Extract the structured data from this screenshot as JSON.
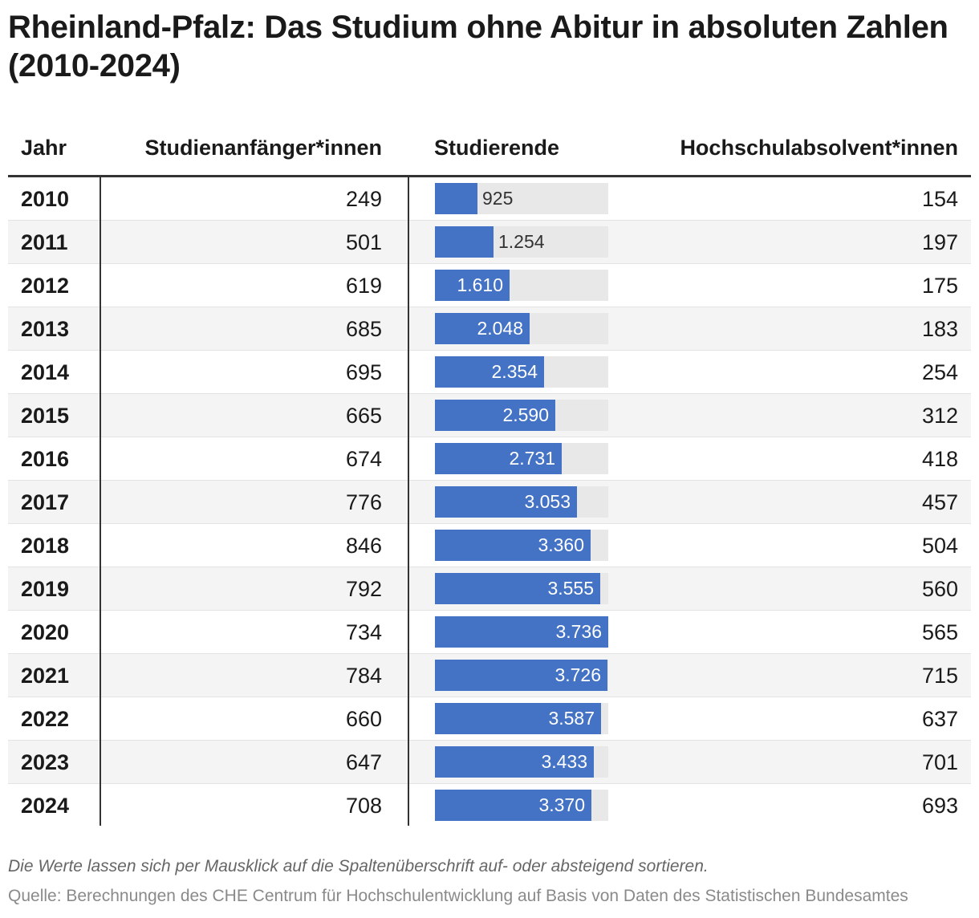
{
  "title": "Rheinland-Pfalz: Das Studium ohne Abitur in absoluten Zahlen (2010-2024)",
  "columns": {
    "year": "Jahr",
    "anfaenger": "Studienanfänger*innen",
    "studierende": "Studierende",
    "absolventen": "Hochschulabsolvent*innen"
  },
  "chart_data": {
    "type": "table",
    "title": "Rheinland-Pfalz: Das Studium ohne Abitur in absoluten Zahlen (2010-2024)",
    "bar_column": "Studierende",
    "bar_max": 3736,
    "rows": [
      {
        "year": "2010",
        "anfaenger": "249",
        "studierende": 925,
        "studierende_label": "925",
        "absolventen": "154"
      },
      {
        "year": "2011",
        "anfaenger": "501",
        "studierende": 1254,
        "studierende_label": "1.254",
        "absolventen": "197"
      },
      {
        "year": "2012",
        "anfaenger": "619",
        "studierende": 1610,
        "studierende_label": "1.610",
        "absolventen": "175"
      },
      {
        "year": "2013",
        "anfaenger": "685",
        "studierende": 2048,
        "studierende_label": "2.048",
        "absolventen": "183"
      },
      {
        "year": "2014",
        "anfaenger": "695",
        "studierende": 2354,
        "studierende_label": "2.354",
        "absolventen": "254"
      },
      {
        "year": "2015",
        "anfaenger": "665",
        "studierende": 2590,
        "studierende_label": "2.590",
        "absolventen": "312"
      },
      {
        "year": "2016",
        "anfaenger": "674",
        "studierende": 2731,
        "studierende_label": "2.731",
        "absolventen": "418"
      },
      {
        "year": "2017",
        "anfaenger": "776",
        "studierende": 3053,
        "studierende_label": "3.053",
        "absolventen": "457"
      },
      {
        "year": "2018",
        "anfaenger": "846",
        "studierende": 3360,
        "studierende_label": "3.360",
        "absolventen": "504"
      },
      {
        "year": "2019",
        "anfaenger": "792",
        "studierende": 3555,
        "studierende_label": "3.555",
        "absolventen": "560"
      },
      {
        "year": "2020",
        "anfaenger": "734",
        "studierende": 3736,
        "studierende_label": "3.736",
        "absolventen": "565"
      },
      {
        "year": "2021",
        "anfaenger": "784",
        "studierende": 3726,
        "studierende_label": "3.726",
        "absolventen": "715"
      },
      {
        "year": "2022",
        "anfaenger": "660",
        "studierende": 3587,
        "studierende_label": "3.587",
        "absolventen": "637"
      },
      {
        "year": "2023",
        "anfaenger": "647",
        "studierende": 3433,
        "studierende_label": "3.433",
        "absolventen": "701"
      },
      {
        "year": "2024",
        "anfaenger": "708",
        "studierende": 3370,
        "studierende_label": "3.370",
        "absolventen": "693"
      }
    ]
  },
  "colors": {
    "bar": "#4472c4",
    "track": "#e8e8e8"
  },
  "note": "Die Werte lassen sich per Mausklick auf die Spaltenüberschrift auf- oder absteigend sortieren.",
  "source": "Quelle: Berechnungen des CHE Centrum für Hochschulentwicklung auf Basis von Daten des Statistischen Bundesamtes"
}
